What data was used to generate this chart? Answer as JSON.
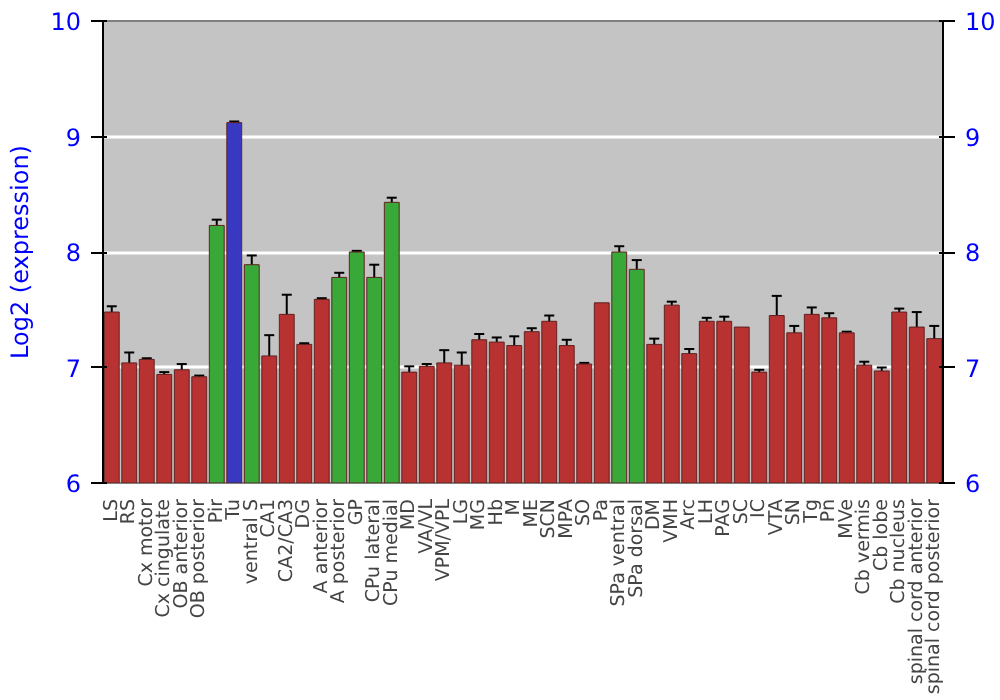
{
  "chart_data": {
    "type": "bar",
    "ylabel": "Log2 (expression)",
    "categories": [
      "LS",
      "RS",
      "Cx motor",
      "Cx cingulate",
      "OB anterior",
      "OB posterior",
      "Pir",
      "Tu",
      "ventral S",
      "CA1",
      "CA2/CA3",
      "DG",
      "A anterior",
      "A posterior",
      "GP",
      "CPu lateral",
      "CPu medial",
      "MD",
      "VA/VL",
      "VPM/VPL",
      "LG",
      "MG",
      "Hb",
      "M",
      "ME",
      "SCN",
      "MPA",
      "SO",
      "Pa",
      "SPa ventral",
      "SPa dorsal",
      "DM",
      "VMH",
      "Arc",
      "LH",
      "PAG",
      "SC",
      "IC",
      "VTA",
      "SN",
      "Tg",
      "Pn",
      "MVe",
      "Cb vermis",
      "Cb lobe",
      "Cb nucleus",
      "spinal cord anterior",
      "spinal cord posterior"
    ],
    "values": [
      7.48,
      7.04,
      7.07,
      6.94,
      6.98,
      6.92,
      8.23,
      9.12,
      7.89,
      7.1,
      7.46,
      7.2,
      7.59,
      7.78,
      8.0,
      7.78,
      8.43,
      6.96,
      7.01,
      7.04,
      7.02,
      7.24,
      7.22,
      7.19,
      7.31,
      7.4,
      7.19,
      7.03,
      7.56,
      8.0,
      7.85,
      7.2,
      7.54,
      7.12,
      7.4,
      7.4,
      7.35,
      6.96,
      7.45,
      7.3,
      7.46,
      7.43,
      7.3,
      7.02,
      6.97,
      7.48,
      7.35,
      7.25
    ],
    "errors": [
      0.05,
      0.09,
      0.01,
      0.02,
      0.05,
      0.01,
      0.05,
      0.01,
      0.08,
      0.18,
      0.17,
      0.01,
      0.01,
      0.04,
      0.01,
      0.11,
      0.04,
      0.05,
      0.02,
      0.11,
      0.11,
      0.05,
      0.04,
      0.08,
      0.03,
      0.05,
      0.05,
      0.01,
      null,
      0.05,
      0.08,
      0.05,
      0.03,
      0.04,
      0.03,
      0.04,
      null,
      0.02,
      0.17,
      0.06,
      0.06,
      0.04,
      0.01,
      0.03,
      0.03,
      0.03,
      0.13,
      0.11
    ],
    "colors": [
      "#b83232",
      "#b83232",
      "#b83232",
      "#b83232",
      "#b83232",
      "#b83232",
      "#38a838",
      "#3838c0",
      "#38a838",
      "#b83232",
      "#b83232",
      "#b83232",
      "#b83232",
      "#38a838",
      "#38a838",
      "#38a838",
      "#38a838",
      "#b83232",
      "#b83232",
      "#b83232",
      "#b83232",
      "#b83232",
      "#b83232",
      "#b83232",
      "#b83232",
      "#b83232",
      "#b83232",
      "#b83232",
      "#b83232",
      "#38a838",
      "#38a838",
      "#b83232",
      "#b83232",
      "#b83232",
      "#b83232",
      "#b83232",
      "#b83232",
      "#b83232",
      "#b83232",
      "#b83232",
      "#b83232",
      "#b83232",
      "#b83232",
      "#b83232",
      "#b83232",
      "#b83232",
      "#b83232",
      "#b83232"
    ],
    "ylim": [
      6,
      10
    ],
    "yticks": [
      6,
      7,
      8,
      9,
      10
    ],
    "y2lim": [
      6,
      10
    ],
    "y2ticks": [
      6,
      7,
      8,
      9,
      10
    ],
    "grid": "y"
  }
}
